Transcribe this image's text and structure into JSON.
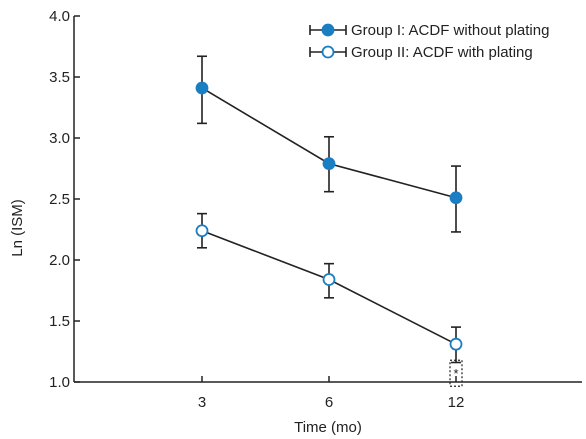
{
  "chart_data": {
    "type": "line",
    "xlabel": "Time (mo)",
    "ylabel": "Ln (ISM)",
    "ylim": [
      1.0,
      4.0
    ],
    "yticks": [
      "1.0",
      "1.5",
      "2.0",
      "2.5",
      "3.0",
      "3.5",
      "4.0"
    ],
    "x": [
      3,
      6,
      12
    ],
    "xtick_labels": [
      "3",
      "6",
      "12"
    ],
    "grid": false,
    "legend_position": "top-right",
    "series": [
      {
        "name": "Group I: ACDF without plating",
        "marker": "filled-circle",
        "values": [
          3.41,
          2.79,
          2.51
        ],
        "err_upper": [
          3.67,
          3.01,
          2.77
        ],
        "err_lower": [
          3.12,
          2.56,
          2.23
        ]
      },
      {
        "name": "Group II: ACDF with plating",
        "marker": "open-circle",
        "values": [
          2.24,
          1.84,
          1.31
        ],
        "err_upper": [
          2.38,
          1.97,
          1.45
        ],
        "err_lower": [
          2.1,
          1.69,
          1.16
        ]
      }
    ],
    "annotations": [
      {
        "text": "*",
        "x": 12,
        "y": 1.08,
        "boxed": true
      }
    ],
    "colors": {
      "marker_fill": "#1a7ec3",
      "marker_edge": "#1a7ec3",
      "line": "#222222",
      "axis": "#222222"
    }
  }
}
